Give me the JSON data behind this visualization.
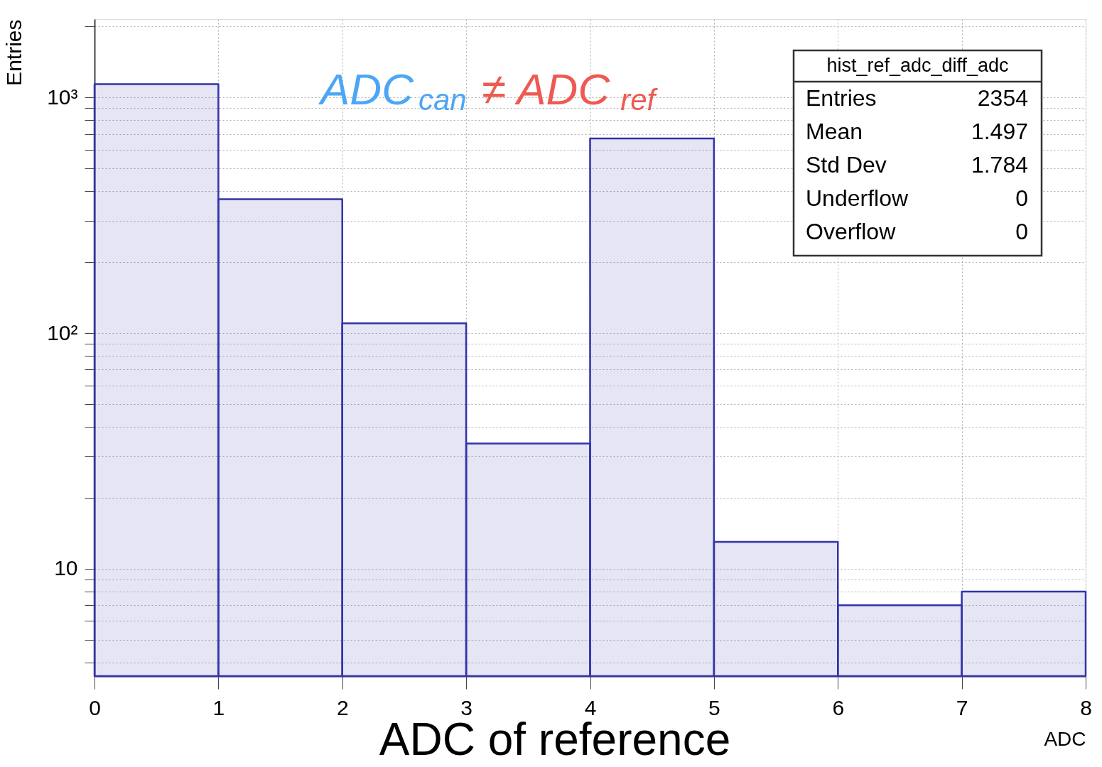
{
  "chart_data": {
    "type": "histogram",
    "xlabel": "ADC",
    "ylabel": "Entries",
    "bins": [
      0,
      1,
      2,
      3,
      4,
      5,
      6,
      7,
      8
    ],
    "values": [
      1140,
      370,
      110,
      34,
      670,
      13,
      7,
      8
    ],
    "color": "#3333aa",
    "xlim": [
      0,
      8
    ],
    "xticks": [
      0,
      1,
      2,
      3,
      4,
      5,
      6,
      7,
      8
    ],
    "ylim": [
      3.5,
      2150
    ],
    "log": true,
    "yticks": [
      {
        "value": 4,
        "label": null
      },
      {
        "value": 5,
        "label": null
      },
      {
        "value": 6,
        "label": null
      },
      {
        "value": 7,
        "label": null
      },
      {
        "value": 8,
        "label": null
      },
      {
        "value": 9,
        "label": null
      },
      {
        "value": 10,
        "label": "10"
      },
      {
        "value": 20,
        "label": null
      },
      {
        "value": 30,
        "label": null
      },
      {
        "value": 40,
        "label": null
      },
      {
        "value": 50,
        "label": null
      },
      {
        "value": 60,
        "label": null
      },
      {
        "value": 70,
        "label": null
      },
      {
        "value": 80,
        "label": null
      },
      {
        "value": 90,
        "label": null
      },
      {
        "value": 100,
        "label": "10²"
      },
      {
        "value": 200,
        "label": null
      },
      {
        "value": 300,
        "label": null
      },
      {
        "value": 400,
        "label": null
      },
      {
        "value": 500,
        "label": null
      },
      {
        "value": 600,
        "label": null
      },
      {
        "value": 700,
        "label": null
      },
      {
        "value": 800,
        "label": null
      },
      {
        "value": 900,
        "label": null
      },
      {
        "value": 1000,
        "label": "10³"
      },
      {
        "value": 2000,
        "label": null
      }
    ],
    "grid": true,
    "annotations": [
      "ADC$_{can}$ ≠ ADC$_{ref}$",
      "hist_ref_adc_diff_adc",
      "Entries 2354",
      "Mean 1.497",
      "Std Dev 1.784",
      "Underflow 0",
      "Overflow 0",
      "ADC of reference"
    ]
  }
}
